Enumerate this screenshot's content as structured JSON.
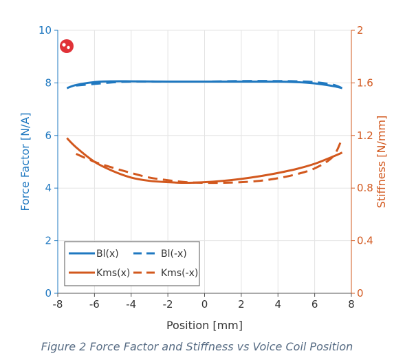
{
  "caption": "Figure 2 Force Factor and Stiffness vs Voice Coil Position",
  "colors": {
    "bl": "#1f78c0",
    "kms": "#d2581e",
    "grid": "#e3e3e3",
    "logo": "#e03238",
    "text": "#333333"
  },
  "logo_icon": "red-circle-logo",
  "chart_data": {
    "type": "line",
    "title": "",
    "xlabel": "Position [mm]",
    "ylabel_left": "Force Factor [N/A]",
    "ylabel_right": "Stiffness [N/mm]",
    "xlim": [
      -8,
      8
    ],
    "ylim_left": [
      0,
      10
    ],
    "ylim_right": [
      0,
      2
    ],
    "x_ticks": [
      "-8",
      "-6",
      "-4",
      "-2",
      "0",
      "2",
      "4",
      "6",
      "8"
    ],
    "y_left_ticks": [
      "0",
      "2",
      "4",
      "6",
      "8",
      "10"
    ],
    "y_right_ticks": [
      "0",
      "0.4",
      "0.8",
      "1.2",
      "1.6",
      "2"
    ],
    "grid": true,
    "legend_position": "bottom-left",
    "series": [
      {
        "name": "Bl(x)",
        "axis": "left",
        "style": "solid",
        "color": "#1f78c0",
        "x": [
          -7.5,
          -7,
          -6,
          -5,
          -4,
          -2,
          0,
          2,
          4,
          5,
          6,
          7,
          7.5
        ],
        "y": [
          7.8,
          7.92,
          8.03,
          8.06,
          8.06,
          8.05,
          8.05,
          8.05,
          8.05,
          8.03,
          7.98,
          7.88,
          7.8
        ]
      },
      {
        "name": "Bl(-x)",
        "axis": "left",
        "style": "dashed",
        "color": "#1f78c0",
        "x": [
          -7,
          -6,
          -5,
          -4,
          -2,
          0,
          2,
          4,
          5,
          6,
          7,
          7.5
        ],
        "y": [
          7.9,
          7.96,
          8.02,
          8.05,
          8.05,
          8.05,
          8.07,
          8.07,
          8.06,
          8.03,
          7.93,
          7.8
        ]
      },
      {
        "name": "Kms(x)",
        "axis": "right",
        "style": "solid",
        "color": "#d2581e",
        "x": [
          -7.5,
          -7,
          -6,
          -5,
          -4,
          -3,
          -2,
          -1,
          0,
          1,
          2,
          3,
          4,
          5,
          6,
          7,
          7.5
        ],
        "y": [
          1.18,
          1.11,
          1.0,
          0.93,
          0.88,
          0.855,
          0.845,
          0.84,
          0.845,
          0.855,
          0.87,
          0.89,
          0.915,
          0.945,
          0.985,
          1.04,
          1.07
        ]
      },
      {
        "name": "Kms(-x)",
        "axis": "right",
        "style": "dashed",
        "color": "#d2581e",
        "x": [
          -7,
          -6,
          -5,
          -4,
          -3,
          -2,
          -1,
          0,
          1,
          2,
          3,
          4,
          5,
          6,
          7,
          7.5
        ],
        "y": [
          1.06,
          1.0,
          0.955,
          0.915,
          0.88,
          0.86,
          0.845,
          0.84,
          0.84,
          0.845,
          0.855,
          0.875,
          0.905,
          0.95,
          1.04,
          1.18
        ]
      }
    ]
  }
}
